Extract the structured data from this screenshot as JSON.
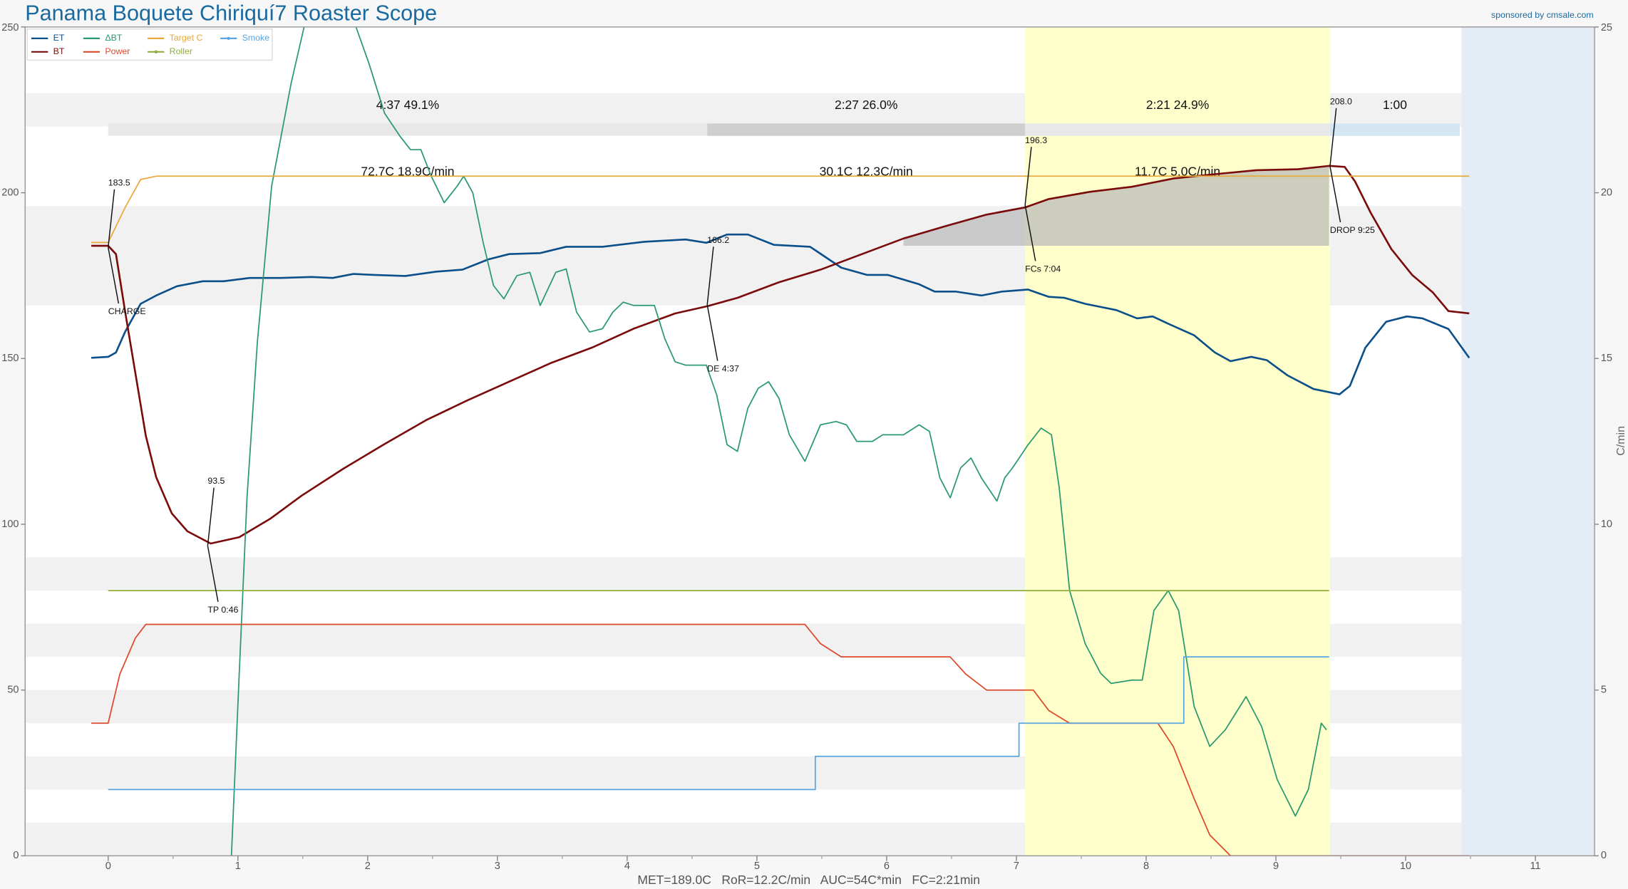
{
  "chart_data": {
    "type": "line",
    "title": "Panama Boquete Chiriquí7 Roaster Scope",
    "sponsor": "sponsored by cmsale.com",
    "footer": "MET=189.0C   RoR=12.2C/min   AUC=54C*min   FC=2:21min",
    "y2_label": "C/min",
    "legend": "upper left",
    "xlim": [
      -0.64,
      11.456
    ],
    "xticks": [
      0,
      1,
      2,
      3,
      4,
      5,
      6,
      7,
      8,
      9,
      10,
      11
    ],
    "ylim": [
      0,
      250
    ],
    "yticks": [
      0,
      50,
      100,
      150,
      200,
      250
    ],
    "y2lim": [
      0,
      25
    ],
    "y2ticks": [
      0,
      5,
      10,
      15,
      20,
      25
    ],
    "series": [
      {
        "name": "ET",
        "color": "#0b4f8a",
        "x": [
          -0.13,
          0,
          0.06,
          0.13,
          0.25,
          0.37,
          0.53,
          0.73,
          0.89,
          1.09,
          1.33,
          1.57,
          1.73,
          1.89,
          2.05,
          2.29,
          2.53,
          2.73,
          2.93,
          3.09,
          3.33,
          3.53,
          3.81,
          4.13,
          4.45,
          4.61,
          4.77,
          4.93,
          5.13,
          5.41,
          5.65,
          5.85,
          6.01,
          6.25,
          6.37,
          6.53,
          6.73,
          6.89,
          7.09,
          7.25,
          7.37,
          7.53,
          7.77,
          7.93,
          8.05,
          8.17,
          8.37,
          8.53,
          8.65,
          8.81,
          8.93,
          9.09,
          9.29,
          9.49,
          9.57,
          9.69,
          9.85,
          10.01,
          10.13,
          10.33,
          10.49
        ],
        "values": [
          150.2,
          150.5,
          151.8,
          158,
          166.5,
          169,
          171.8,
          173.3,
          173.3,
          174.3,
          174.3,
          174.6,
          174.3,
          175.5,
          175.2,
          174.9,
          176.2,
          176.8,
          179.9,
          181.5,
          181.8,
          183.7,
          183.7,
          185.2,
          185.9,
          184.9,
          187.4,
          187.4,
          184.3,
          183.7,
          177.4,
          175.2,
          175.2,
          172.4,
          170.2,
          170.2,
          169,
          170.2,
          170.8,
          168.6,
          168.3,
          166.5,
          164.6,
          162.1,
          162.7,
          160.5,
          157,
          151.8,
          149.2,
          150.5,
          149.5,
          144.9,
          140.8,
          139.2,
          141.7,
          153.3,
          161.1,
          162.7,
          162.1,
          158.9,
          150.2
        ]
      },
      {
        "name": "BT",
        "color": "#7b0b0b",
        "x": [
          -0.13,
          0,
          0.06,
          0.13,
          0.21,
          0.29,
          0.37,
          0.49,
          0.61,
          0.79,
          1.01,
          1.25,
          1.49,
          1.81,
          2.13,
          2.45,
          2.77,
          3.09,
          3.41,
          3.73,
          4.05,
          4.37,
          4.62,
          4.85,
          5.17,
          5.49,
          5.81,
          6.13,
          6.45,
          6.77,
          7.07,
          7.25,
          7.57,
          7.89,
          8.21,
          8.53,
          8.85,
          9.17,
          9.41,
          9.53,
          9.61,
          9.73,
          9.89,
          10.05,
          10.21,
          10.33,
          10.49
        ],
        "values": [
          184,
          184,
          181.5,
          164.3,
          145.5,
          126.7,
          114.2,
          103.3,
          97.9,
          94.2,
          96.1,
          101.7,
          108.6,
          116.7,
          124.2,
          131.4,
          137.4,
          143,
          148.6,
          153.3,
          159,
          163.6,
          165.8,
          168.3,
          173,
          176.8,
          181.5,
          186.2,
          189.9,
          193.4,
          195.6,
          198.1,
          200.3,
          201.8,
          204.3,
          205.6,
          206.8,
          207.1,
          208.1,
          207.8,
          203.4,
          194,
          183,
          175.2,
          169.9,
          164.3,
          163.6
        ]
      },
      {
        "name": "ΔBT",
        "color": "#2a9a6e",
        "axis": "y2",
        "x": [
          0.95,
          1.01,
          1.07,
          1.15,
          1.26,
          1.41,
          1.51,
          1.7,
          1.91,
          2.01,
          2.13,
          2.25,
          2.33,
          2.41,
          2.49,
          2.59,
          2.69,
          2.74,
          2.81,
          2.89,
          2.97,
          3.05,
          3.15,
          3.25,
          3.33,
          3.45,
          3.53,
          3.61,
          3.71,
          3.81,
          3.89,
          3.97,
          4.05,
          4.21,
          4.29,
          4.37,
          4.45,
          4.53,
          4.61,
          4.69,
          4.77,
          4.85,
          4.93,
          5.01,
          5.09,
          5.17,
          5.25,
          5.37,
          5.49,
          5.61,
          5.69,
          5.77,
          5.89,
          5.97,
          6.13,
          6.25,
          6.33,
          6.41,
          6.49,
          6.57,
          6.65,
          6.73,
          6.85,
          6.91,
          6.97,
          7.09,
          7.19,
          7.27,
          7.33,
          7.41,
          7.53,
          7.65,
          7.73,
          7.89,
          7.97,
          8.06,
          8.17,
          8.25,
          8.37,
          8.49,
          8.61,
          8.77,
          8.89,
          9.01,
          9.15,
          9.25,
          9.35,
          9.39
        ],
        "values": [
          0,
          5.48,
          10.8,
          15.5,
          20.2,
          23.3,
          25,
          null,
          25,
          23.9,
          22.4,
          21.7,
          21.3,
          21.3,
          20.5,
          19.7,
          20.2,
          20.5,
          20,
          18.5,
          17.2,
          16.8,
          17.5,
          17.6,
          16.6,
          17.6,
          17.7,
          16.4,
          15.8,
          15.9,
          16.4,
          16.7,
          16.6,
          16.6,
          15.6,
          14.9,
          14.8,
          14.8,
          14.8,
          13.9,
          12.4,
          12.2,
          13.5,
          14.1,
          14.3,
          13.8,
          12.7,
          11.9,
          13,
          13.1,
          13,
          12.5,
          12.5,
          12.7,
          12.7,
          13,
          12.8,
          11.4,
          10.8,
          11.7,
          12,
          11.4,
          10.7,
          11.4,
          11.7,
          12.4,
          12.9,
          12.7,
          11.1,
          8,
          6.4,
          5.5,
          5.2,
          5.3,
          5.3,
          7.4,
          8,
          7.4,
          4.5,
          3.3,
          3.8,
          4.8,
          3.9,
          2.3,
          1.2,
          2,
          4,
          3.8
        ]
      },
      {
        "name": "Power",
        "color": "#dd4a2a",
        "x": [
          -0.13,
          0,
          0.09,
          0.21,
          0.29,
          5.37,
          5.49,
          5.65,
          6.49,
          6.61,
          6.77,
          7.13,
          7.25,
          7.41,
          8.09,
          8.21,
          8.37,
          8.49,
          8.65,
          10.49
        ],
        "values": [
          40,
          40,
          54.8,
          65.7,
          69.8,
          69.8,
          64,
          60,
          60,
          54.8,
          50,
          50,
          43.8,
          40,
          40,
          32.9,
          17.2,
          6.3,
          0,
          0
        ]
      },
      {
        "name": "Target C",
        "color": "#e8a93a",
        "x": [
          -0.13,
          0,
          0.13,
          0.25,
          0.37,
          10.49
        ],
        "values": [
          185,
          185,
          195.5,
          204,
          205,
          205
        ]
      },
      {
        "name": "Roller",
        "color": "#8fae3a",
        "x": [
          0,
          9.41
        ],
        "values": [
          80,
          80
        ]
      },
      {
        "name": "Smoke",
        "color": "#5aa5e0",
        "x": [
          0,
          5.45,
          5.45,
          7.02,
          7.02,
          8.29,
          8.29,
          9.41
        ],
        "values": [
          20,
          20,
          30,
          30,
          40,
          40,
          60,
          60
        ]
      }
    ],
    "events": [
      {
        "name": "CHARGE",
        "x": 0,
        "value": 183.5
      },
      {
        "name": "TP 0:46",
        "x": 0.767,
        "value": 93.5
      },
      {
        "name": "DE 4:37",
        "x": 4.617,
        "value": 166.2
      },
      {
        "name": "FCs 7:04",
        "x": 7.067,
        "value": 196.3
      },
      {
        "name": "DROP 9:25",
        "x": 9.417,
        "value": 208,
        "value_label": "208.0"
      }
    ],
    "phases": [
      {
        "label": "4:37  49.1%",
        "stats": "72.7C  18.9C/min",
        "x": [
          0,
          4.617
        ],
        "color": "#e8e8e8"
      },
      {
        "label": "2:27  26.0%",
        "stats": "30.1C  12.3C/min",
        "x": [
          4.617,
          7.067
        ],
        "color": "#cfcfcf"
      },
      {
        "label": "2:21  24.9%",
        "stats": "11.7C  5.0C/min",
        "x": [
          7.067,
          9.417
        ],
        "color": "#e8e8e8"
      },
      {
        "label": "1:00",
        "x": [
          9.417,
          10.417
        ],
        "color": "#d4e6f3"
      }
    ],
    "shaded_regions": [
      {
        "x": [
          7.067,
          9.417
        ],
        "color": "#ffffcc"
      },
      {
        "x": [
          10.43,
          11.456
        ],
        "color": "#e4edf5"
      }
    ],
    "auc": {
      "base": 184,
      "x": [
        6.13,
        9.417
      ],
      "color": "#b8b8b8"
    }
  }
}
